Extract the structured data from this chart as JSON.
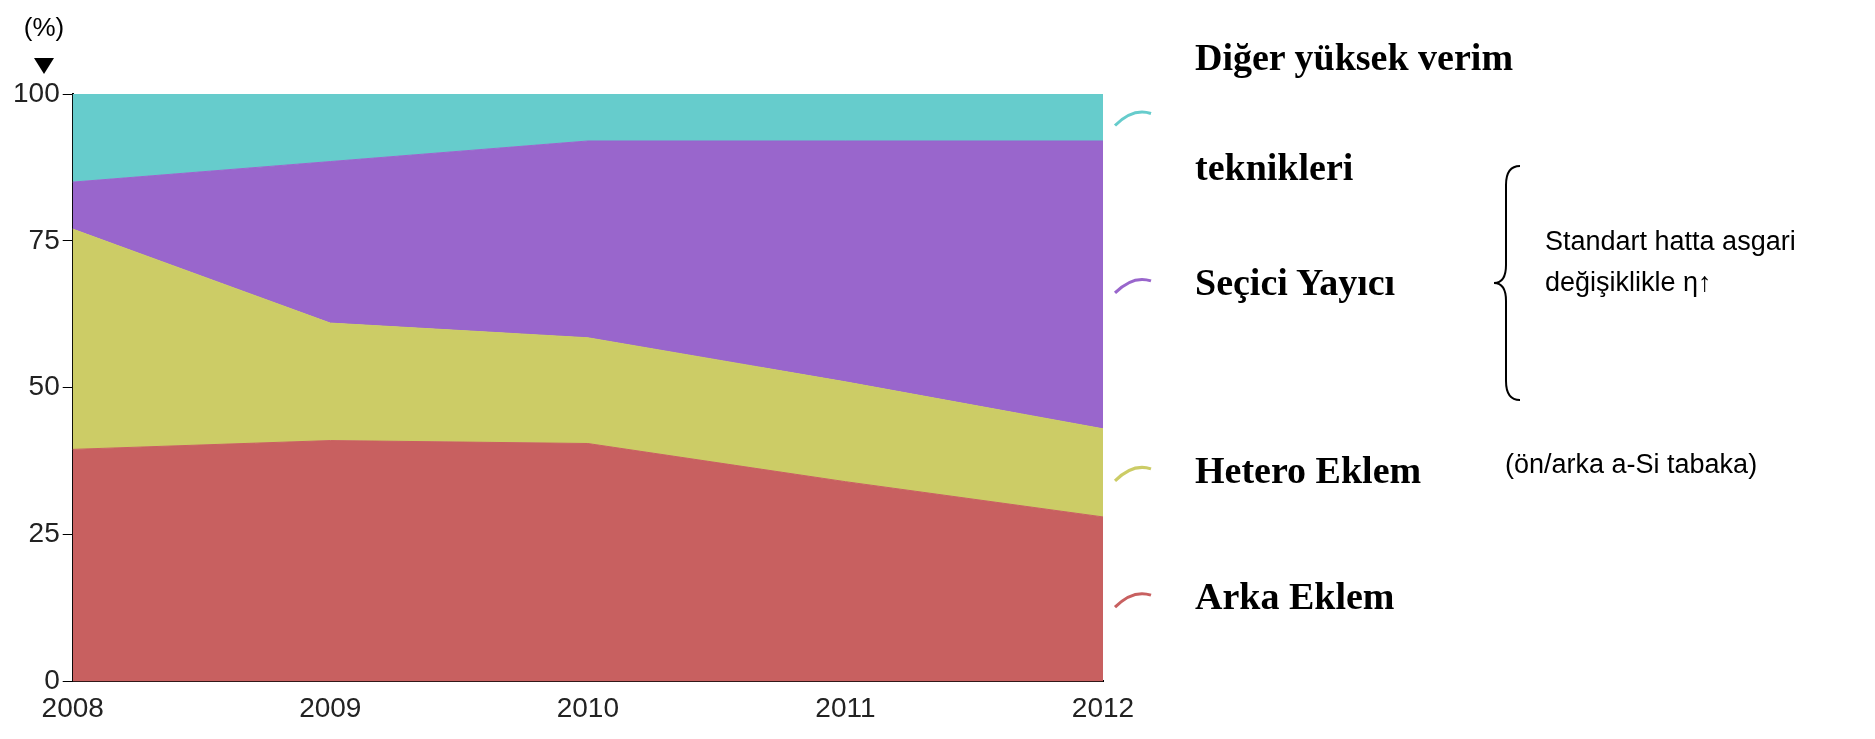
{
  "chart_data": {
    "type": "area",
    "stacked": true,
    "ylabel": "(%)",
    "categories": [
      "2008",
      "2009",
      "2010",
      "2011",
      "2012"
    ],
    "series": [
      {
        "name": "Arka Eklem",
        "color": "#c86060",
        "values": [
          39.5,
          41,
          40.5,
          34,
          28
        ]
      },
      {
        "name": "Hetero Eklem",
        "color": "#cccc66",
        "values": [
          37.5,
          20,
          18,
          17,
          15
        ]
      },
      {
        "name": "Seçici Yayıcı",
        "color": "#9966cc",
        "values": [
          8,
          27.5,
          33.5,
          41,
          49
        ]
      },
      {
        "name": "Diğer yüksek verim teknikleri",
        "color": "#66cccc",
        "values": [
          15,
          11.5,
          8,
          8,
          8
        ]
      }
    ],
    "ylim": [
      0,
      100
    ],
    "yticks": [
      0,
      25,
      50,
      75,
      100
    ],
    "grid": false,
    "legend": "right",
    "marker": "none",
    "annotations": [
      "Standart hatta asgari değişiklikle η↑",
      "(ön/arka a-Si tabaka)"
    ]
  }
}
